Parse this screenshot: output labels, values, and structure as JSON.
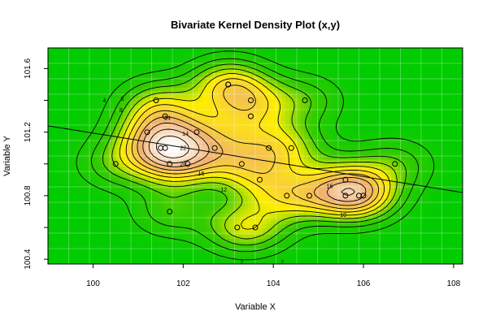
{
  "chart_data": {
    "type": "contour-scatter",
    "title": "Bivariate Kernel Density Plot (x,y)",
    "xlabel": "Variable X",
    "ylabel": "Variable Y",
    "xlim": [
      99.0,
      108.2
    ],
    "ylim": [
      100.37,
      101.73
    ],
    "x_ticks": [
      100,
      102,
      104,
      106,
      108
    ],
    "y_ticks": [
      100.4,
      100.6,
      100.8,
      101.0,
      101.2,
      101.4,
      101.6
    ],
    "x_tick_labels": [
      "100",
      "102",
      "104",
      "106",
      "108"
    ],
    "y_tick_labels": [
      "100.4",
      "",
      "100.8",
      "",
      "101.2",
      "",
      "101.6"
    ],
    "grid": true,
    "legend": "none",
    "colors": {
      "background": "#00cc00",
      "low_density": "#33cc00",
      "mid_density": "#ffee00",
      "high_density": "#f0b070",
      "peak_density": "#ffffff",
      "contour_line": "#000000",
      "regression_line": "#000000",
      "points": "#000000"
    },
    "contour_levels": [
      2,
      4,
      6,
      8,
      10,
      12,
      14,
      16,
      18,
      20,
      22
    ],
    "contour_labels": [
      {
        "text": "2",
        "x": 103.3,
        "y": 100.38
      },
      {
        "text": "2",
        "x": 104.2,
        "y": 100.38
      },
      {
        "text": "4",
        "x": 100.25,
        "y": 101.4
      },
      {
        "text": "6",
        "x": 100.65,
        "y": 101.41
      },
      {
        "text": "8",
        "x": 100.62,
        "y": 101.34
      },
      {
        "text": "10",
        "x": 105.55,
        "y": 100.68
      },
      {
        "text": "12",
        "x": 102.9,
        "y": 100.84
      },
      {
        "text": "14",
        "x": 101.65,
        "y": 101.29
      },
      {
        "text": "14",
        "x": 102.05,
        "y": 101.19
      },
      {
        "text": "16",
        "x": 102.4,
        "y": 100.94
      },
      {
        "text": "16",
        "x": 105.25,
        "y": 100.86
      },
      {
        "text": "20",
        "x": 102.0,
        "y": 101.0
      },
      {
        "text": "22",
        "x": 102.0,
        "y": 101.1
      }
    ],
    "regression_line": {
      "x": [
        99.0,
        108.2
      ],
      "y": [
        101.24,
        100.82
      ]
    },
    "points": [
      {
        "x": 100.5,
        "y": 101.0
      },
      {
        "x": 101.2,
        "y": 101.2
      },
      {
        "x": 101.4,
        "y": 101.4
      },
      {
        "x": 101.5,
        "y": 101.1
      },
      {
        "x": 101.6,
        "y": 101.1
      },
      {
        "x": 101.6,
        "y": 101.3
      },
      {
        "x": 101.7,
        "y": 101.0
      },
      {
        "x": 101.7,
        "y": 100.7
      },
      {
        "x": 102.1,
        "y": 101.0
      },
      {
        "x": 102.3,
        "y": 101.2
      },
      {
        "x": 102.7,
        "y": 101.1
      },
      {
        "x": 103.0,
        "y": 101.5
      },
      {
        "x": 103.0,
        "y": 101.5
      },
      {
        "x": 103.2,
        "y": 100.6
      },
      {
        "x": 103.3,
        "y": 101.0
      },
      {
        "x": 103.5,
        "y": 101.4
      },
      {
        "x": 103.5,
        "y": 101.3
      },
      {
        "x": 103.6,
        "y": 100.6
      },
      {
        "x": 103.7,
        "y": 100.9
      },
      {
        "x": 103.9,
        "y": 101.1
      },
      {
        "x": 104.3,
        "y": 100.8
      },
      {
        "x": 104.4,
        "y": 101.1
      },
      {
        "x": 104.7,
        "y": 101.4
      },
      {
        "x": 104.8,
        "y": 100.8
      },
      {
        "x": 105.6,
        "y": 100.9
      },
      {
        "x": 105.6,
        "y": 100.8
      },
      {
        "x": 105.9,
        "y": 100.8
      },
      {
        "x": 106.0,
        "y": 100.8
      },
      {
        "x": 106.7,
        "y": 101.0
      }
    ]
  }
}
